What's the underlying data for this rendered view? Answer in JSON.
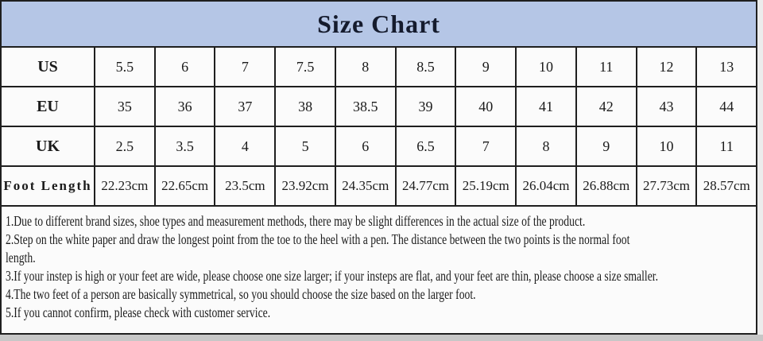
{
  "header": {
    "title": "Size Chart"
  },
  "chart_data": {
    "type": "table",
    "title": "Size Chart",
    "row_labels": [
      "US",
      "EU",
      "UK",
      "Foot Length"
    ],
    "rows": [
      {
        "label": "US",
        "values": [
          "5.5",
          "6",
          "7",
          "7.5",
          "8",
          "8.5",
          "9",
          "10",
          "11",
          "12",
          "13"
        ]
      },
      {
        "label": "EU",
        "values": [
          "35",
          "36",
          "37",
          "38",
          "38.5",
          "39",
          "40",
          "41",
          "42",
          "43",
          "44"
        ]
      },
      {
        "label": "UK",
        "values": [
          "2.5",
          "3.5",
          "4",
          "5",
          "6",
          "6.5",
          "7",
          "8",
          "9",
          "10",
          "11"
        ]
      },
      {
        "label": "Foot Length",
        "values": [
          "22.23cm",
          "22.65cm",
          "23.5cm",
          "23.92cm",
          "24.35cm",
          "24.77cm",
          "25.19cm",
          "26.04cm",
          "26.88cm",
          "27.73cm",
          "28.57cm"
        ]
      }
    ]
  },
  "notes": {
    "lines": [
      "1.Due to different brand sizes, shoe types and measurement methods, there may be slight differences in the actual size of the product.",
      "2.Step on the white paper and draw the longest point from the toe to the heel with a pen. The distance between the two points is the normal foot",
      "length.",
      "3.If your instep is high or your feet are wide, please choose one size larger; if your insteps are flat, and your feet are thin, please choose a size smaller.",
      "4.The two feet of a person are basically symmetrical, so you should choose the size based on the larger foot.",
      "5.If you cannot confirm, please check with customer service."
    ]
  },
  "colors": {
    "header_bg": "#b5c6e6",
    "title_color": "#151b2d",
    "border_color": "#1f1f1f",
    "cell_bg": "#fbfbfb",
    "text_color": "#1b1b1b"
  }
}
